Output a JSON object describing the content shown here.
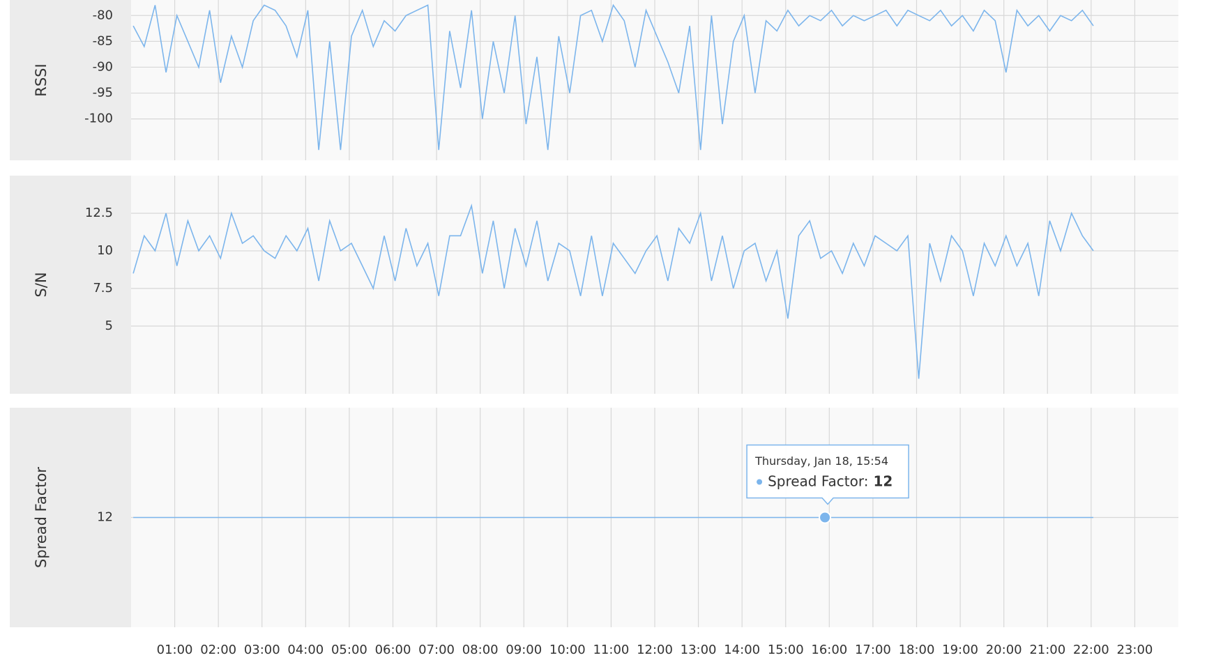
{
  "chart_data": [
    {
      "type": "line",
      "y_label": "RSSI",
      "color": "#7cb5ec",
      "grid": true,
      "xlim": [
        0,
        24
      ],
      "ylim": [
        -108,
        -77
      ],
      "yticks": [
        -80,
        -85,
        -90,
        -95,
        -100
      ],
      "x": [
        0.05,
        0.3,
        0.55,
        0.8,
        1.05,
        1.3,
        1.55,
        1.8,
        2.05,
        2.3,
        2.55,
        2.8,
        3.05,
        3.3,
        3.55,
        3.8,
        4.05,
        4.3,
        4.55,
        4.8,
        5.05,
        5.3,
        5.55,
        5.8,
        6.05,
        6.3,
        6.55,
        6.8,
        7.05,
        7.3,
        7.55,
        7.8,
        8.05,
        8.3,
        8.55,
        8.8,
        9.05,
        9.3,
        9.55,
        9.8,
        10.05,
        10.3,
        10.55,
        10.8,
        11.05,
        11.3,
        11.55,
        11.8,
        12.05,
        12.3,
        12.55,
        12.8,
        13.05,
        13.3,
        13.55,
        13.8,
        14.05,
        14.3,
        14.55,
        14.8,
        15.05,
        15.3,
        15.55,
        15.8,
        16.05,
        16.3,
        16.55,
        16.8,
        17.05,
        17.3,
        17.55,
        17.8,
        18.05,
        18.3,
        18.55,
        18.8,
        19.05,
        19.3,
        19.55,
        19.8,
        20.05,
        20.3,
        20.55,
        20.8,
        21.05,
        21.3,
        21.55,
        21.8,
        22.05
      ],
      "values": [
        -82,
        -86,
        -78,
        -91,
        -80,
        -85,
        -90,
        -79,
        -93,
        -84,
        -90,
        -81,
        -78,
        -79,
        -82,
        -88,
        -79,
        -106,
        -85,
        -106,
        -84,
        -79,
        -86,
        -81,
        -83,
        -80,
        -79,
        -78,
        -106,
        -83,
        -94,
        -79,
        -100,
        -85,
        -95,
        -80,
        -101,
        -88,
        -106,
        -84,
        -95,
        -80,
        -79,
        -85,
        -78,
        -81,
        -90,
        -79,
        -84,
        -89,
        -95,
        -82,
        -106,
        -80,
        -101,
        -85,
        -80,
        -95,
        -81,
        -83,
        -79,
        -82,
        -80,
        -81,
        -79,
        -82,
        -80,
        -81,
        -80,
        -79,
        -82,
        -79,
        -80,
        -81,
        -79,
        -82,
        -80,
        -83,
        -79,
        -81,
        -91,
        -79,
        -82,
        -80,
        -83,
        -80,
        -81,
        -79,
        -82
      ]
    },
    {
      "type": "line",
      "y_label": "S/N",
      "color": "#7cb5ec",
      "grid": true,
      "xlim": [
        0,
        24
      ],
      "ylim": [
        0.5,
        15
      ],
      "yticks": [
        12.5,
        10,
        7.5,
        5
      ],
      "x": [
        0.05,
        0.3,
        0.55,
        0.8,
        1.05,
        1.3,
        1.55,
        1.8,
        2.05,
        2.3,
        2.55,
        2.8,
        3.05,
        3.3,
        3.55,
        3.8,
        4.05,
        4.3,
        4.55,
        4.8,
        5.05,
        5.3,
        5.55,
        5.8,
        6.05,
        6.3,
        6.55,
        6.8,
        7.05,
        7.3,
        7.55,
        7.8,
        8.05,
        8.3,
        8.55,
        8.8,
        9.05,
        9.3,
        9.55,
        9.8,
        10.05,
        10.3,
        10.55,
        10.8,
        11.05,
        11.3,
        11.55,
        11.8,
        12.05,
        12.3,
        12.55,
        12.8,
        13.05,
        13.3,
        13.55,
        13.8,
        14.05,
        14.3,
        14.55,
        14.8,
        15.05,
        15.3,
        15.55,
        15.8,
        16.05,
        16.3,
        16.55,
        16.8,
        17.05,
        17.3,
        17.55,
        17.8,
        18.05,
        18.3,
        18.55,
        18.8,
        19.05,
        19.3,
        19.55,
        19.8,
        20.05,
        20.3,
        20.55,
        20.8,
        21.05,
        21.3,
        21.55,
        21.8,
        22.05
      ],
      "values": [
        8.5,
        11,
        10,
        12.5,
        9,
        12,
        10,
        11,
        9.5,
        12.5,
        10.5,
        11,
        10,
        9.5,
        11,
        10,
        11.5,
        8,
        12,
        10,
        10.5,
        9,
        7.5,
        11,
        8,
        11.5,
        9,
        10.5,
        7,
        11,
        11,
        13,
        8.5,
        12,
        7.5,
        11.5,
        9,
        12,
        8,
        10.5,
        10,
        7,
        11,
        7,
        10.5,
        9.5,
        8.5,
        10,
        11,
        8,
        11.5,
        10.5,
        12.5,
        8,
        11,
        7.5,
        10,
        10.5,
        8,
        10,
        5.5,
        11,
        12,
        9.5,
        10,
        8.5,
        10.5,
        9,
        11,
        10.5,
        10,
        11,
        1.5,
        10.5,
        8,
        11,
        10,
        7,
        10.5,
        9,
        11,
        9,
        10.5,
        7,
        12,
        10,
        12.5,
        11,
        10
      ]
    },
    {
      "type": "line",
      "y_label": "Spread Factor",
      "color": "#7cb5ec",
      "grid": true,
      "xlim": [
        0,
        24
      ],
      "ylim": [
        11,
        13
      ],
      "yticks": [
        12
      ],
      "x": [
        0.05,
        15.9,
        22.05
      ],
      "values": [
        12,
        12,
        12
      ],
      "xticks": [
        {
          "value": 1,
          "label": "01:00"
        },
        {
          "value": 2,
          "label": "02:00"
        },
        {
          "value": 3,
          "label": "03:00"
        },
        {
          "value": 4,
          "label": "04:00"
        },
        {
          "value": 5,
          "label": "05:00"
        },
        {
          "value": 6,
          "label": "06:00"
        },
        {
          "value": 7,
          "label": "07:00"
        },
        {
          "value": 8,
          "label": "08:00"
        },
        {
          "value": 9,
          "label": "09:00"
        },
        {
          "value": 10,
          "label": "10:00"
        },
        {
          "value": 11,
          "label": "11:00"
        },
        {
          "value": 12,
          "label": "12:00"
        },
        {
          "value": 13,
          "label": "13:00"
        },
        {
          "value": 14,
          "label": "14:00"
        },
        {
          "value": 15,
          "label": "15:00"
        },
        {
          "value": 16,
          "label": "16:00"
        },
        {
          "value": 17,
          "label": "17:00"
        },
        {
          "value": 18,
          "label": "18:00"
        },
        {
          "value": 19,
          "label": "19:00"
        },
        {
          "value": 20,
          "label": "20:00"
        },
        {
          "value": 21,
          "label": "21:00"
        },
        {
          "value": 22,
          "label": "22:00"
        },
        {
          "value": 23,
          "label": "23:00"
        }
      ],
      "tooltip": {
        "title": "Thursday, Jan 18, 15:54",
        "label": "Spread Factor:",
        "value": 12,
        "x": 15.9
      }
    }
  ]
}
